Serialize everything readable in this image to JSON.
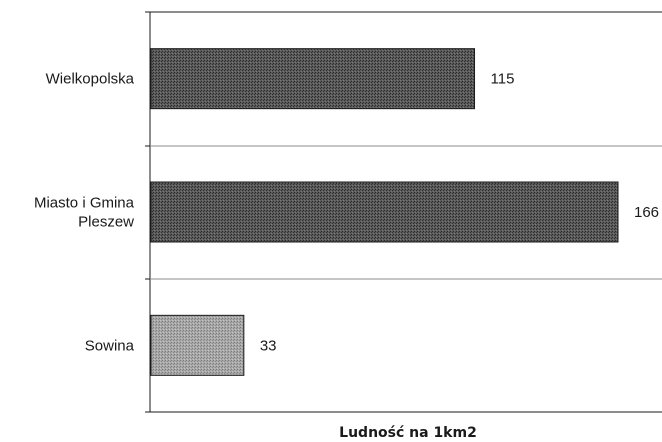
{
  "chart_data": {
    "type": "bar",
    "orientation": "horizontal",
    "categories": [
      [
        "Wielkopolska"
      ],
      [
        "Miasto i Gmina",
        "Pleszew"
      ],
      [
        "Sowina"
      ]
    ],
    "values": [
      115,
      166,
      33
    ],
    "value_labels": [
      "115",
      "166",
      "33"
    ],
    "xlabel": "Ludność na 1km2",
    "ylabel": "",
    "xlim": [
      0,
      175
    ],
    "grid": "horizontal separators between categories",
    "legend": "none",
    "colors": {
      "bars": [
        "#4a4a4a",
        "#4a4a4a",
        "#9a9a9a"
      ],
      "bar_border": "#1a1a1a",
      "axis": "#1a1a1a",
      "grid": "#8c8c8c"
    }
  }
}
